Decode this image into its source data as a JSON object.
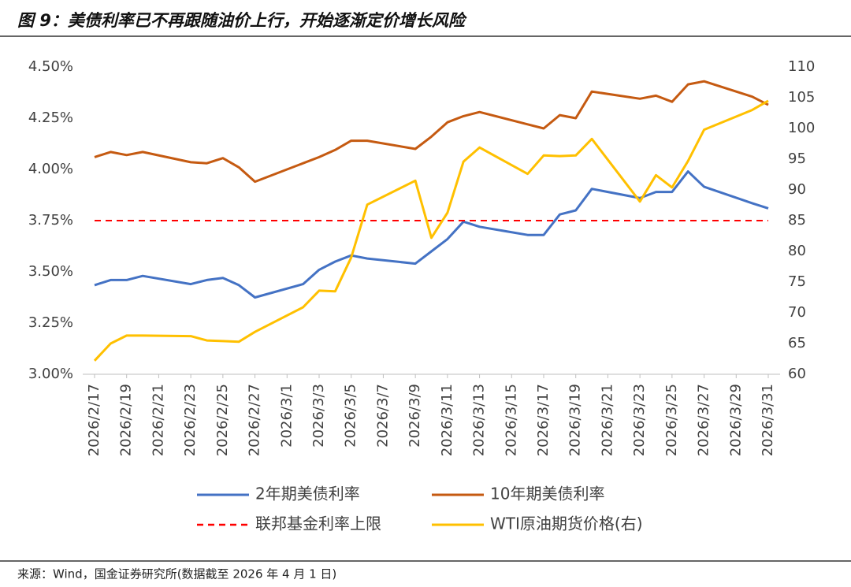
{
  "chart_data": {
    "type": "line",
    "title": "图 9：美债利率已不再跟随油价上行，开始逐渐定价增长风险",
    "source": "来源：Wind，国金证券研究所(数据截至 2026 年 4 月 1 日)",
    "x": [
      "2026/2/17",
      "2026/2/18",
      "2026/2/19",
      "2026/2/20",
      "2026/2/23",
      "2026/2/24",
      "2026/2/25",
      "2026/2/26",
      "2026/2/27",
      "2026/3/2",
      "2026/3/3",
      "2026/3/4",
      "2026/3/5",
      "2026/3/6",
      "2026/3/9",
      "2026/3/10",
      "2026/3/11",
      "2026/3/12",
      "2026/3/13",
      "2026/3/16",
      "2026/3/17",
      "2026/3/18",
      "2026/3/19",
      "2026/3/20",
      "2026/3/23",
      "2026/3/24",
      "2026/3/25",
      "2026/3/26",
      "2026/3/27",
      "2026/3/30",
      "2026/3/31"
    ],
    "xlim": [
      "2026/2/17",
      "2026/3/31"
    ],
    "xticks": [
      "2026/2/17",
      "2026/2/19",
      "2026/2/21",
      "2026/2/23",
      "2026/2/25",
      "2026/2/27",
      "2026/3/1",
      "2026/3/3",
      "2026/3/5",
      "2026/3/7",
      "2026/3/9",
      "2026/3/11",
      "2026/3/13",
      "2026/3/15",
      "2026/3/17",
      "2026/3/19",
      "2026/3/21",
      "2026/3/23",
      "2026/3/25",
      "2026/3/27",
      "2026/3/29",
      "2026/3/31"
    ],
    "ylim": [
      3.0,
      4.5
    ],
    "yticks": [
      {
        "value": 3.0,
        "label": "3.00%"
      },
      {
        "value": 3.25,
        "label": "3.25%"
      },
      {
        "value": 3.5,
        "label": "3.50%"
      },
      {
        "value": 3.75,
        "label": "3.75%"
      },
      {
        "value": 4.0,
        "label": "4.00%"
      },
      {
        "value": 4.25,
        "label": "4.25%"
      },
      {
        "value": 4.5,
        "label": "4.50%"
      }
    ],
    "y2lim": [
      60,
      110
    ],
    "y2ticks": [
      60,
      65,
      70,
      75,
      80,
      85,
      90,
      95,
      100,
      105,
      110
    ],
    "series": [
      {
        "name": "2年期美债利率",
        "color": "#4472c4",
        "values": [
          3.435,
          3.46,
          3.46,
          3.48,
          3.44,
          3.46,
          3.47,
          3.435,
          3.375,
          3.44,
          3.51,
          3.55,
          3.58,
          3.565,
          3.54,
          3.6,
          3.66,
          3.745,
          3.72,
          3.68,
          3.68,
          3.78,
          3.8,
          3.905,
          3.86,
          3.89,
          3.89,
          3.99,
          3.915,
          3.835,
          3.81
        ]
      },
      {
        "name": "10年期美债利率",
        "color": "#c55a11",
        "values": [
          4.06,
          4.085,
          4.07,
          4.085,
          4.035,
          4.03,
          4.055,
          4.01,
          3.94,
          4.03,
          4.06,
          4.095,
          4.14,
          4.14,
          4.1,
          4.16,
          4.23,
          4.26,
          4.28,
          4.22,
          4.2,
          4.265,
          4.25,
          4.38,
          4.345,
          4.36,
          4.33,
          4.415,
          4.43,
          4.355,
          4.315
        ]
      },
      {
        "name": "联邦基金利率上限",
        "color": "#ff0000",
        "value": 3.75,
        "dash": true
      },
      {
        "name": "WTI原油期货价格(右)",
        "color": "#ffc000",
        "axis": "y2",
        "values": [
          62.2,
          65.0,
          66.3,
          66.3,
          66.2,
          65.5,
          65.4,
          65.3,
          66.9,
          70.9,
          73.6,
          73.5,
          79.0,
          87.6,
          91.5,
          82.2,
          86.3,
          94.6,
          96.9,
          92.6,
          95.6,
          95.5,
          95.6,
          98.3,
          88.1,
          92.4,
          90.4,
          94.7,
          99.8,
          103.0,
          104.5
        ]
      }
    ]
  }
}
